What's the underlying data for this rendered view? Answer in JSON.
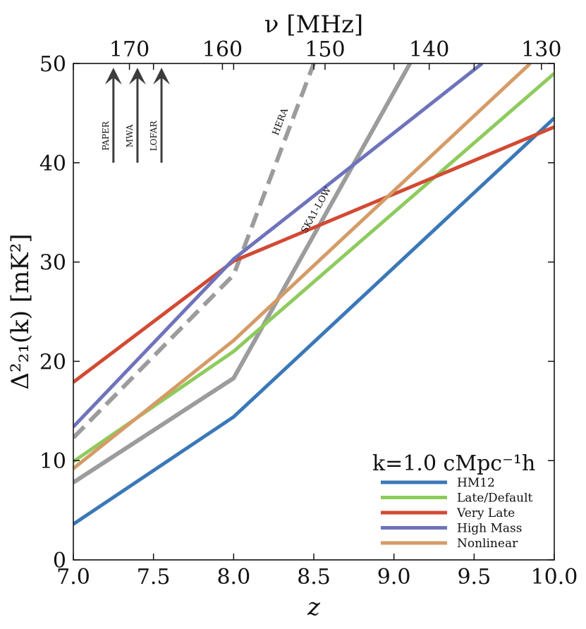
{
  "chart_data": {
    "type": "line",
    "title": "",
    "xlabel": "z",
    "ylabel": "Δ²₂₁(k) [mK²]",
    "top_xlabel": "ν [MHz]",
    "xlim": [
      7.0,
      10.0
    ],
    "ylim": [
      0,
      50
    ],
    "x_ticks": [
      "7.0",
      "7.5",
      "8.0",
      "8.5",
      "9.0",
      "9.5",
      "10.0"
    ],
    "x_tick_values": [
      7.0,
      7.5,
      8.0,
      8.5,
      9.0,
      9.5,
      10.0
    ],
    "y_ticks": [
      "0",
      "10",
      "20",
      "30",
      "40",
      "50"
    ],
    "y_tick_values": [
      0,
      10,
      20,
      30,
      40,
      50
    ],
    "top_ticks": [
      "170",
      "160",
      "150",
      "140",
      "130"
    ],
    "top_tick_z": [
      7.35,
      7.93,
      8.57,
      9.22,
      9.92
    ],
    "legend_title": "k=1.0 cMpc⁻¹h",
    "legend_location": "lower-right",
    "grid": false,
    "series": [
      {
        "name": "HM12",
        "color": "#3a78b8",
        "style": "solid",
        "x": [
          7.0,
          8.0,
          10.0
        ],
        "y": [
          3.6,
          14.4,
          44.5
        ]
      },
      {
        "name": "Late/Default",
        "color": "#8ecb5d",
        "style": "solid",
        "x": [
          7.0,
          8.0,
          10.0
        ],
        "y": [
          9.9,
          21.0,
          49.0
        ]
      },
      {
        "name": "Very Late",
        "color": "#d24a33",
        "style": "solid",
        "x": [
          7.0,
          8.0,
          10.0
        ],
        "y": [
          17.9,
          30.1,
          43.6
        ]
      },
      {
        "name": "High Mass",
        "color": "#6e73bb",
        "style": "solid",
        "x": [
          7.0,
          8.0,
          9.55
        ],
        "y": [
          13.4,
          30.3,
          50.0
        ]
      },
      {
        "name": "Nonlinear",
        "color": "#d59b66",
        "style": "solid",
        "x": [
          7.0,
          8.0,
          9.85
        ],
        "y": [
          9.2,
          22.1,
          50.0
        ]
      }
    ],
    "sensitivity_curves": [
      {
        "name": "HERA",
        "label": "HERA",
        "color": "#9c9c9c",
        "style": "dashed",
        "x": [
          7.0,
          8.0,
          8.5
        ],
        "y": [
          12.3,
          28.7,
          50.0
        ]
      },
      {
        "name": "SKA1-LOW",
        "label": "SKA1-LOW",
        "color": "#9c9c9c",
        "style": "solid",
        "x": [
          7.0,
          8.0,
          9.1
        ],
        "y": [
          7.8,
          18.3,
          50.0
        ]
      }
    ],
    "instrument_arrows": [
      {
        "name": "PAPER",
        "x": 7.25,
        "y_from": 40,
        "y_to": 50
      },
      {
        "name": "MWA",
        "x": 7.4,
        "y_from": 40,
        "y_to": 50
      },
      {
        "name": "LOFAR",
        "x": 7.55,
        "y_from": 40,
        "y_to": 50
      }
    ]
  }
}
